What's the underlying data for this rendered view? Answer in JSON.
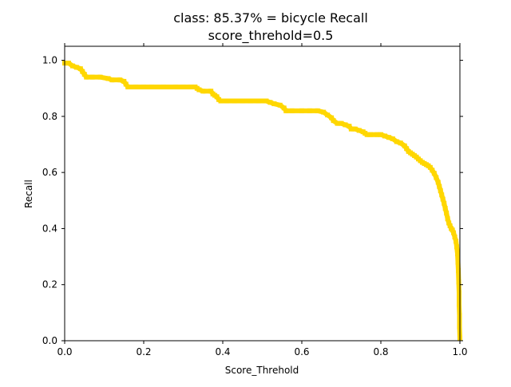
{
  "chart_data": {
    "type": "line",
    "title_line1": "class: 85.37% = bicycle Recall",
    "title_line2": "score_threhold=0.5",
    "xlabel": "Score_Threhold",
    "ylabel": "Recall",
    "xlim": [
      0.0,
      1.0
    ],
    "ylim": [
      0.0,
      1.05
    ],
    "x_ticks": [
      0.0,
      0.2,
      0.4,
      0.6,
      0.8,
      1.0
    ],
    "x_tick_labels": [
      "0.0",
      "0.2",
      "0.4",
      "0.6",
      "0.8",
      "1.0"
    ],
    "y_ticks": [
      0.0,
      0.2,
      0.4,
      0.6,
      0.8,
      1.0
    ],
    "y_tick_labels": [
      "0.0",
      "0.2",
      "0.4",
      "0.6",
      "0.8",
      "1.0"
    ],
    "grid": false,
    "series": [
      {
        "color": "#ffd700",
        "marker": "square",
        "points": [
          [
            0.0,
            0.99
          ],
          [
            0.01,
            0.99
          ],
          [
            0.02,
            0.98
          ],
          [
            0.03,
            0.975
          ],
          [
            0.04,
            0.97
          ],
          [
            0.045,
            0.96
          ],
          [
            0.05,
            0.95
          ],
          [
            0.055,
            0.94
          ],
          [
            0.07,
            0.94
          ],
          [
            0.09,
            0.94
          ],
          [
            0.11,
            0.935
          ],
          [
            0.12,
            0.93
          ],
          [
            0.14,
            0.93
          ],
          [
            0.15,
            0.925
          ],
          [
            0.155,
            0.915
          ],
          [
            0.16,
            0.905
          ],
          [
            0.18,
            0.905
          ],
          [
            0.2,
            0.905
          ],
          [
            0.22,
            0.905
          ],
          [
            0.25,
            0.905
          ],
          [
            0.28,
            0.905
          ],
          [
            0.3,
            0.905
          ],
          [
            0.32,
            0.905
          ],
          [
            0.33,
            0.905
          ],
          [
            0.335,
            0.9
          ],
          [
            0.34,
            0.895
          ],
          [
            0.35,
            0.89
          ],
          [
            0.37,
            0.89
          ],
          [
            0.375,
            0.88
          ],
          [
            0.38,
            0.875
          ],
          [
            0.385,
            0.87
          ],
          [
            0.39,
            0.86
          ],
          [
            0.395,
            0.855
          ],
          [
            0.41,
            0.855
          ],
          [
            0.43,
            0.855
          ],
          [
            0.45,
            0.855
          ],
          [
            0.47,
            0.855
          ],
          [
            0.49,
            0.855
          ],
          [
            0.51,
            0.855
          ],
          [
            0.52,
            0.85
          ],
          [
            0.53,
            0.845
          ],
          [
            0.545,
            0.84
          ],
          [
            0.555,
            0.83
          ],
          [
            0.56,
            0.82
          ],
          [
            0.575,
            0.82
          ],
          [
            0.6,
            0.82
          ],
          [
            0.62,
            0.82
          ],
          [
            0.64,
            0.82
          ],
          [
            0.655,
            0.815
          ],
          [
            0.665,
            0.805
          ],
          [
            0.675,
            0.795
          ],
          [
            0.68,
            0.785
          ],
          [
            0.69,
            0.775
          ],
          [
            0.7,
            0.775
          ],
          [
            0.71,
            0.77
          ],
          [
            0.72,
            0.765
          ],
          [
            0.725,
            0.755
          ],
          [
            0.735,
            0.755
          ],
          [
            0.745,
            0.75
          ],
          [
            0.755,
            0.745
          ],
          [
            0.76,
            0.74
          ],
          [
            0.765,
            0.735
          ],
          [
            0.775,
            0.735
          ],
          [
            0.79,
            0.735
          ],
          [
            0.8,
            0.735
          ],
          [
            0.81,
            0.73
          ],
          [
            0.82,
            0.725
          ],
          [
            0.83,
            0.72
          ],
          [
            0.84,
            0.71
          ],
          [
            0.85,
            0.705
          ],
          [
            0.86,
            0.695
          ],
          [
            0.865,
            0.685
          ],
          [
            0.87,
            0.675
          ],
          [
            0.875,
            0.67
          ],
          [
            0.88,
            0.665
          ],
          [
            0.885,
            0.66
          ],
          [
            0.89,
            0.655
          ],
          [
            0.895,
            0.648
          ],
          [
            0.9,
            0.642
          ],
          [
            0.905,
            0.636
          ],
          [
            0.91,
            0.632
          ],
          [
            0.915,
            0.628
          ],
          [
            0.92,
            0.624
          ],
          [
            0.925,
            0.618
          ],
          [
            0.93,
            0.608
          ],
          [
            0.935,
            0.597
          ],
          [
            0.94,
            0.582
          ],
          [
            0.945,
            0.565
          ],
          [
            0.948,
            0.55
          ],
          [
            0.951,
            0.535
          ],
          [
            0.954,
            0.52
          ],
          [
            0.957,
            0.505
          ],
          [
            0.96,
            0.49
          ],
          [
            0.963,
            0.472
          ],
          [
            0.966,
            0.455
          ],
          [
            0.969,
            0.435
          ],
          [
            0.972,
            0.42
          ],
          [
            0.975,
            0.41
          ],
          [
            0.978,
            0.4
          ],
          [
            0.981,
            0.395
          ],
          [
            0.984,
            0.385
          ],
          [
            0.987,
            0.37
          ],
          [
            0.99,
            0.355
          ],
          [
            0.992,
            0.335
          ],
          [
            0.994,
            0.31
          ],
          [
            0.995,
            0.28
          ],
          [
            0.996,
            0.25
          ],
          [
            0.997,
            0.21
          ],
          [
            0.998,
            0.17
          ],
          [
            0.998,
            0.13
          ],
          [
            0.999,
            0.09
          ],
          [
            0.999,
            0.05
          ],
          [
            1.0,
            0.01
          ]
        ]
      }
    ]
  }
}
